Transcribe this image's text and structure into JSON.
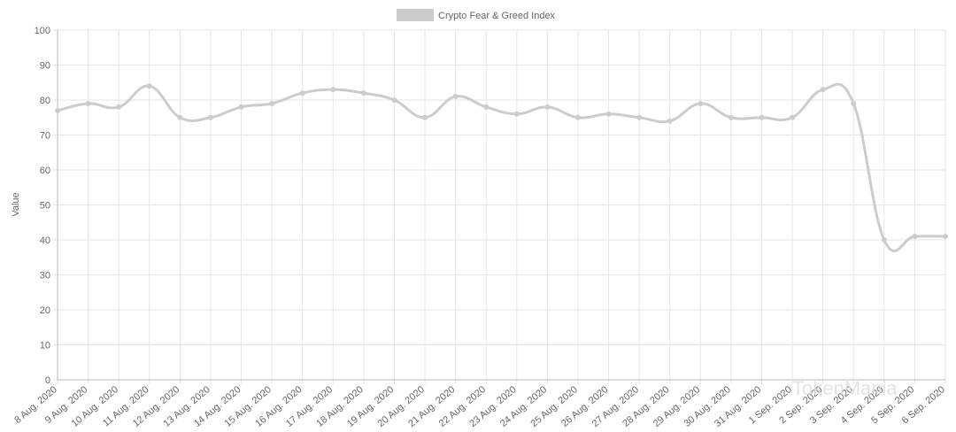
{
  "chart_data": {
    "type": "line",
    "series": [
      {
        "name": "Crypto Fear & Greed Index",
        "color": "#cccccc",
        "values": [
          77,
          79,
          78,
          84,
          75,
          75,
          78,
          79,
          82,
          83,
          82,
          80,
          75,
          81,
          78,
          76,
          78,
          75,
          76,
          75,
          74,
          79,
          75,
          75,
          75,
          83,
          79,
          40,
          41,
          41
        ]
      }
    ],
    "categories": [
      "8 Aug. 2020",
      "9 Aug. 2020",
      "10 Aug. 2020",
      "11 Aug. 2020",
      "12 Aug. 2020",
      "13 Aug. 2020",
      "14 Aug. 2020",
      "15 Aug. 2020",
      "16 Aug. 2020",
      "17 Aug. 2020",
      "18 Aug. 2020",
      "19 Aug. 2020",
      "20 Aug. 2020",
      "21 Aug. 2020",
      "22 Aug. 2020",
      "23 Aug. 2020",
      "24 Aug. 2020",
      "25 Aug. 2020",
      "26 Aug. 2020",
      "27 Aug. 2020",
      "28 Aug. 2020",
      "29 Aug. 2020",
      "30 Aug. 2020",
      "31 Aug. 2020",
      "1 Sep. 2020",
      "2 Sep. 2020",
      "3 Sep. 2020",
      "4 Sep. 2020",
      "5 Sep. 2020",
      "6 Sep. 2020"
    ],
    "y_label": "Value",
    "ylim": [
      0,
      100
    ],
    "yticks": [
      0,
      10,
      20,
      30,
      40,
      50,
      60,
      70,
      80,
      90,
      100
    ],
    "grid": true,
    "legend": "top",
    "watermark": "TokenMania"
  }
}
